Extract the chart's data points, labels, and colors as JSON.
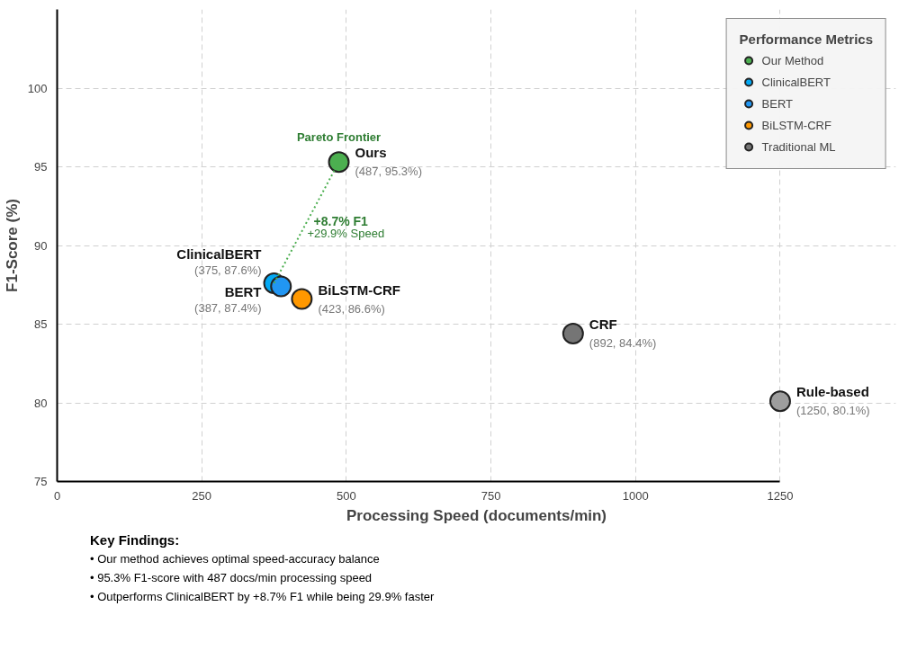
{
  "chart_data": {
    "type": "scatter",
    "xlabel": "Processing Speed (documents/min)",
    "ylabel": "F1-Score (%)",
    "legend_title": "Performance Metrics",
    "series": [
      {
        "name": "Our Method",
        "color": "#4caf50",
        "x": [
          487
        ],
        "values": [
          95.3
        ],
        "value_labels": [
          "(487, 95.3%)"
        ]
      },
      {
        "name": "ClinicalBERT",
        "color": "#03a9f4",
        "x": [
          375
        ],
        "values": [
          87.6
        ],
        "value_labels": [
          "(375, 87.6%)"
        ]
      },
      {
        "name": "BERT",
        "color": "#2196f3",
        "x": [
          387
        ],
        "values": [
          87.4
        ],
        "value_labels": [
          "(387, 87.4%)"
        ]
      },
      {
        "name": "BiLSTM-CRF",
        "color": "#ff9800",
        "x": [
          423
        ],
        "values": [
          86.6
        ],
        "value_labels": [
          "(423, 86.6%)"
        ]
      },
      {
        "name": "Traditional ML",
        "colors": [
          "#757575",
          "#9e9e9e"
        ],
        "x": [
          892,
          1250
        ],
        "values": [
          84.4,
          80.1
        ],
        "value_labels": [
          "(892, 84.4%)",
          "(1250, 80.1%)"
        ]
      },
      {
        "type": "line",
        "color": "#4caf50",
        "line_style": "dotted",
        "x": [
          375,
          487
        ],
        "values": [
          87.6,
          95.3
        ]
      }
    ],
    "xlim": [
      0,
      1250
    ],
    "ylim": [
      75,
      105
    ],
    "xticks": [
      0,
      250,
      500,
      750,
      1000,
      1250
    ],
    "yticks": [
      75,
      80,
      85,
      90,
      95,
      100
    ],
    "grid": true,
    "legend": "top right",
    "annotations": [
      {
        "text": "Ours",
        "x": 487,
        "y": 95.3
      },
      {
        "text": "ClinicalBERT",
        "x": 375,
        "y": 87.6
      },
      {
        "text": "BERT",
        "x": 387,
        "y": 87.4
      },
      {
        "text": "BiLSTM-CRF",
        "x": 423,
        "y": 86.6
      },
      {
        "text": "CRF",
        "x": 892,
        "y": 84.4
      },
      {
        "text": "Rule-based",
        "x": 1250,
        "y": 80.1
      },
      {
        "text": "Pareto Frontier",
        "x": 487,
        "y": 95.3
      },
      {
        "text": "+8.7% F1",
        "x": 431,
        "y": 91.45
      },
      {
        "text": "+29.9% Speed",
        "x": 420,
        "y": 90.69
      },
      "Key Findings:",
      "• Our method achieves optimal speed-accuracy balance",
      "• 95.3% F1-score with 487 docs/min processing speed",
      "• Outperforms ClinicalBERT by +8.7% F1 while being 29.9% faster"
    ]
  }
}
